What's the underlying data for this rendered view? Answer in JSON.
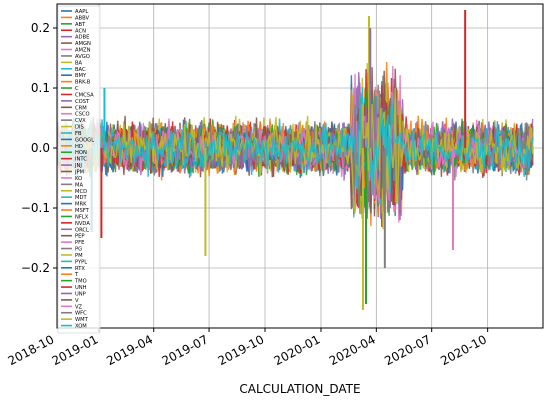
{
  "chart_data": {
    "type": "line",
    "title": "",
    "xlabel": "CALCULATION_DATE",
    "ylabel": "",
    "ylim": [
      -0.3,
      0.24
    ],
    "xlim": [
      "2018-10-24",
      "2020-12-31"
    ],
    "grid": true,
    "legend_placement": "left inside, top to bottom",
    "x_ticks": [
      {
        "date": "2018-10-01",
        "label": "2018-10"
      },
      {
        "date": "2019-01-01",
        "label": "2019-01"
      },
      {
        "date": "2019-04-01",
        "label": "2019-04"
      },
      {
        "date": "2019-07-01",
        "label": "2019-07"
      },
      {
        "date": "2019-10-01",
        "label": "2019-10"
      },
      {
        "date": "2020-01-01",
        "label": "2020-01"
      },
      {
        "date": "2020-04-01",
        "label": "2020-04"
      },
      {
        "date": "2020-07-01",
        "label": "2020-07"
      },
      {
        "date": "2020-10-01",
        "label": "2020-10"
      }
    ],
    "y_ticks": [
      {
        "value": 0.2,
        "label": "0.2"
      },
      {
        "value": 0.1,
        "label": "0.1"
      },
      {
        "value": 0.0,
        "label": "0.0"
      },
      {
        "value": -0.1,
        "label": "−0.1"
      },
      {
        "value": -0.2,
        "label": "−0.2"
      }
    ],
    "series": [
      {
        "name": "AAPL",
        "color": "#1f77b4"
      },
      {
        "name": "ABBV",
        "color": "#ff7f0e"
      },
      {
        "name": "ABT",
        "color": "#2ca02c"
      },
      {
        "name": "ACN",
        "color": "#d62728"
      },
      {
        "name": "ADBE",
        "color": "#9467bd"
      },
      {
        "name": "AMGN",
        "color": "#8c564b"
      },
      {
        "name": "AMZN",
        "color": "#e377c2"
      },
      {
        "name": "AVGO",
        "color": "#7f7f7f"
      },
      {
        "name": "BA",
        "color": "#bcbd22"
      },
      {
        "name": "BAC",
        "color": "#17becf"
      },
      {
        "name": "BMY",
        "color": "#1f77b4"
      },
      {
        "name": "BRK-B",
        "color": "#ff7f0e"
      },
      {
        "name": "C",
        "color": "#2ca02c"
      },
      {
        "name": "CMCSA",
        "color": "#d62728"
      },
      {
        "name": "COST",
        "color": "#9467bd"
      },
      {
        "name": "CRM",
        "color": "#8c564b"
      },
      {
        "name": "CSCO",
        "color": "#e377c2"
      },
      {
        "name": "CVX",
        "color": "#7f7f7f"
      },
      {
        "name": "DIS",
        "color": "#bcbd22"
      },
      {
        "name": "FB",
        "color": "#17becf"
      },
      {
        "name": "GOOGL",
        "color": "#1f77b4"
      },
      {
        "name": "HD",
        "color": "#ff7f0e"
      },
      {
        "name": "HON",
        "color": "#2ca02c"
      },
      {
        "name": "INTC",
        "color": "#d62728"
      },
      {
        "name": "JNJ",
        "color": "#9467bd"
      },
      {
        "name": "JPM",
        "color": "#8c564b"
      },
      {
        "name": "KO",
        "color": "#e377c2"
      },
      {
        "name": "MA",
        "color": "#7f7f7f"
      },
      {
        "name": "MCD",
        "color": "#bcbd22"
      },
      {
        "name": "MDT",
        "color": "#17becf"
      },
      {
        "name": "MRK",
        "color": "#1f77b4"
      },
      {
        "name": "MSFT",
        "color": "#ff7f0e"
      },
      {
        "name": "NFLX",
        "color": "#2ca02c"
      },
      {
        "name": "NVDA",
        "color": "#d62728"
      },
      {
        "name": "ORCL",
        "color": "#9467bd"
      },
      {
        "name": "PEP",
        "color": "#8c564b"
      },
      {
        "name": "PFE",
        "color": "#e377c2"
      },
      {
        "name": "PG",
        "color": "#7f7f7f"
      },
      {
        "name": "PM",
        "color": "#bcbd22"
      },
      {
        "name": "PYPL",
        "color": "#17becf"
      },
      {
        "name": "RTX",
        "color": "#1f77b4"
      },
      {
        "name": "T",
        "color": "#ff7f0e"
      },
      {
        "name": "TMO",
        "color": "#2ca02c"
      },
      {
        "name": "UNH",
        "color": "#d62728"
      },
      {
        "name": "UNP",
        "color": "#9467bd"
      },
      {
        "name": "V",
        "color": "#8c564b"
      },
      {
        "name": "VZ",
        "color": "#e377c2"
      },
      {
        "name": "WFC",
        "color": "#7f7f7f"
      },
      {
        "name": "WMT",
        "color": "#bcbd22"
      },
      {
        "name": "XOM",
        "color": "#17becf"
      }
    ],
    "spikes": [
      {
        "date": "2018-12-20",
        "value": -0.14,
        "color": "#1f77b4"
      },
      {
        "date": "2019-01-05",
        "value": -0.15,
        "color": "#d62728"
      },
      {
        "date": "2019-01-10",
        "value": 0.1,
        "color": "#17becf"
      },
      {
        "date": "2019-06-25",
        "value": -0.18,
        "color": "#bcbd22"
      },
      {
        "date": "2020-03-10",
        "value": -0.27,
        "color": "#bcbd22"
      },
      {
        "date": "2020-03-15",
        "value": -0.26,
        "color": "#2ca02c"
      },
      {
        "date": "2020-03-20",
        "value": 0.22,
        "color": "#bcbd22"
      },
      {
        "date": "2020-03-22",
        "value": 0.2,
        "color": "#9467bd"
      },
      {
        "date": "2020-04-15",
        "value": -0.2,
        "color": "#7f7f7f"
      },
      {
        "date": "2020-08-25",
        "value": 0.23,
        "color": "#d62728"
      },
      {
        "date": "2020-08-05",
        "value": -0.17,
        "color": "#e377c2"
      }
    ]
  }
}
